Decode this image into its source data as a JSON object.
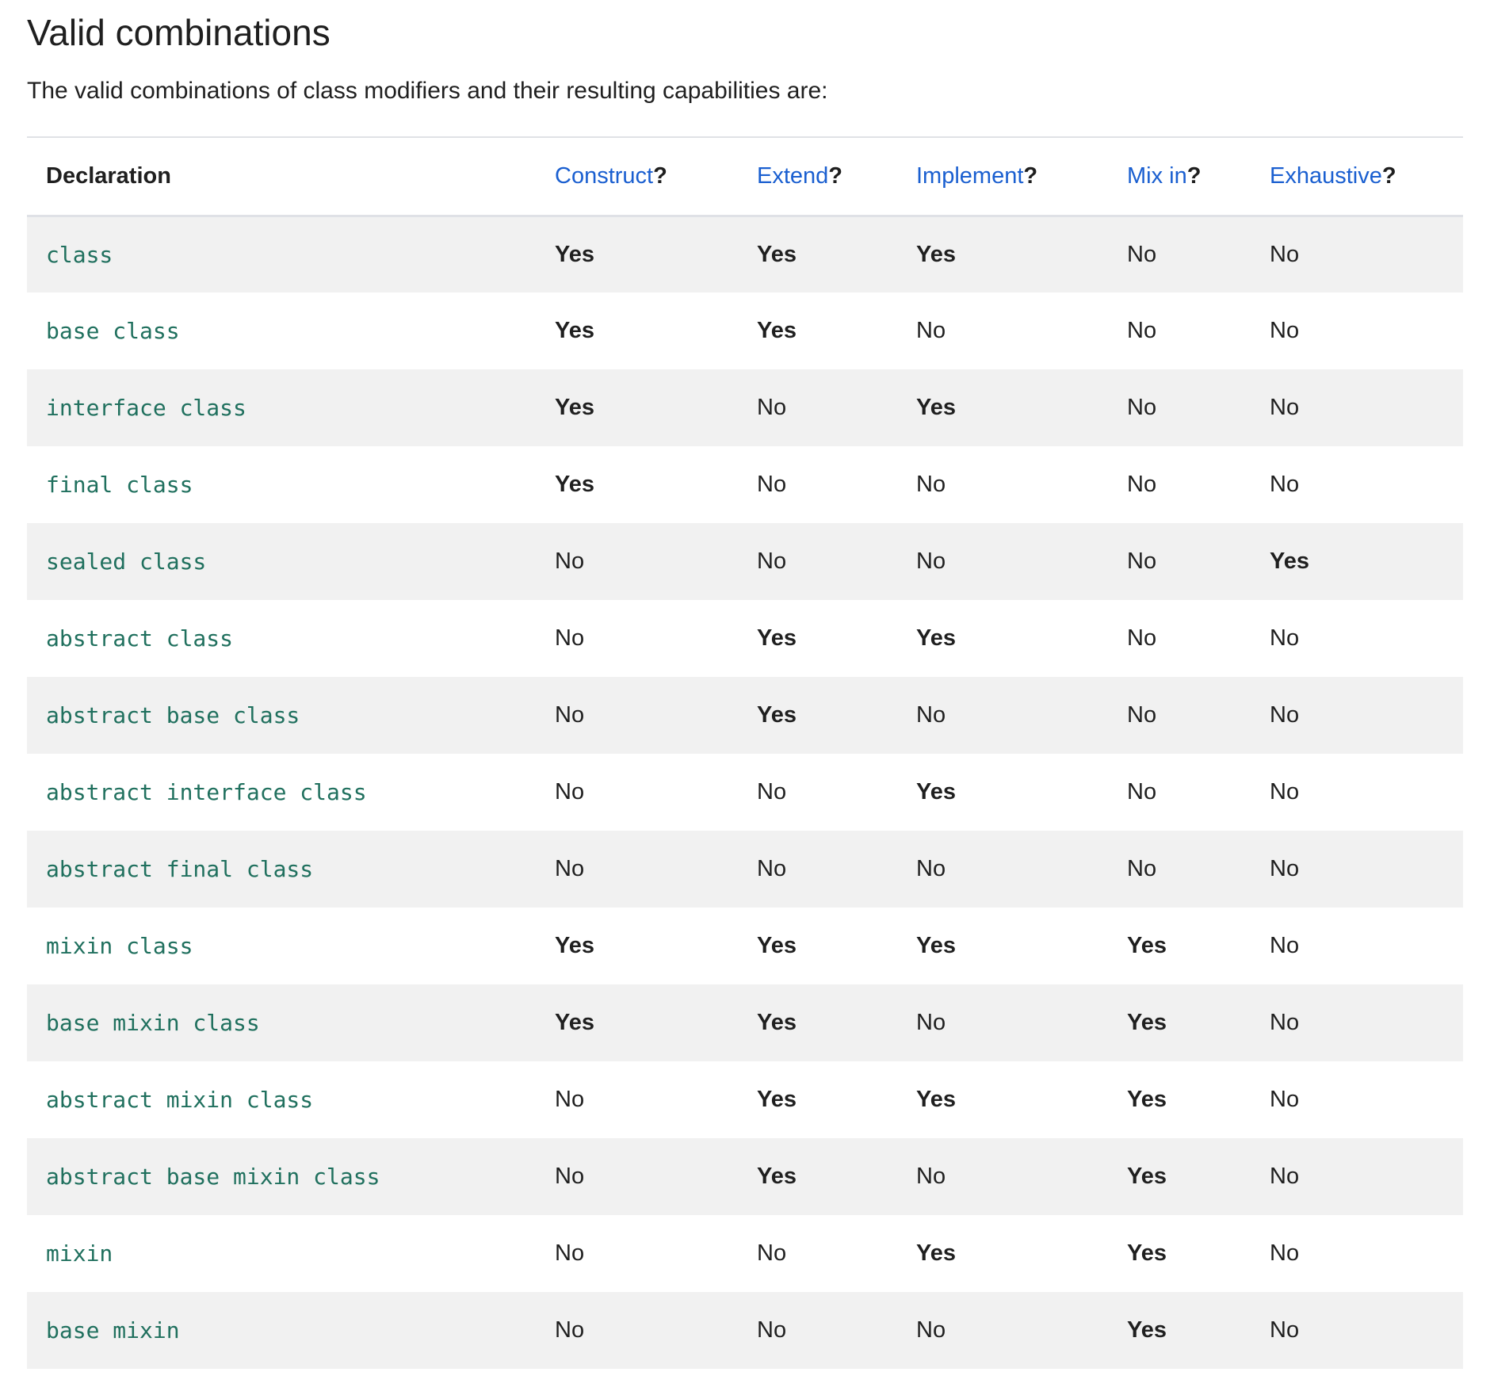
{
  "title": "Valid combinations",
  "intro": "The valid combinations of class modifiers and their resulting capabilities are:",
  "table": {
    "headers": [
      {
        "label": "Declaration",
        "link": false
      },
      {
        "label": "Construct",
        "link": true,
        "suffix": "?"
      },
      {
        "label": "Extend",
        "link": true,
        "suffix": "?"
      },
      {
        "label": "Implement",
        "link": true,
        "suffix": "?"
      },
      {
        "label": "Mix in",
        "link": true,
        "suffix": "?"
      },
      {
        "label": "Exhaustive",
        "link": true,
        "suffix": "?"
      }
    ],
    "rows": [
      [
        "class",
        "Yes",
        "Yes",
        "Yes",
        "No",
        "No"
      ],
      [
        "base class",
        "Yes",
        "Yes",
        "No",
        "No",
        "No"
      ],
      [
        "interface class",
        "Yes",
        "No",
        "Yes",
        "No",
        "No"
      ],
      [
        "final class",
        "Yes",
        "No",
        "No",
        "No",
        "No"
      ],
      [
        "sealed class",
        "No",
        "No",
        "No",
        "No",
        "Yes"
      ],
      [
        "abstract class",
        "No",
        "Yes",
        "Yes",
        "No",
        "No"
      ],
      [
        "abstract base class",
        "No",
        "Yes",
        "No",
        "No",
        "No"
      ],
      [
        "abstract interface class",
        "No",
        "No",
        "Yes",
        "No",
        "No"
      ],
      [
        "abstract final class",
        "No",
        "No",
        "No",
        "No",
        "No"
      ],
      [
        "mixin class",
        "Yes",
        "Yes",
        "Yes",
        "Yes",
        "No"
      ],
      [
        "base mixin class",
        "Yes",
        "Yes",
        "No",
        "Yes",
        "No"
      ],
      [
        "abstract mixin class",
        "No",
        "Yes",
        "Yes",
        "Yes",
        "No"
      ],
      [
        "abstract base mixin class",
        "No",
        "Yes",
        "No",
        "Yes",
        "No"
      ],
      [
        "mixin",
        "No",
        "No",
        "Yes",
        "Yes",
        "No"
      ],
      [
        "base mixin",
        "No",
        "No",
        "No",
        "Yes",
        "No"
      ]
    ]
  },
  "colors": {
    "link": "#1a5fd0",
    "code": "#20705e",
    "stripe": "#f1f1f1"
  }
}
